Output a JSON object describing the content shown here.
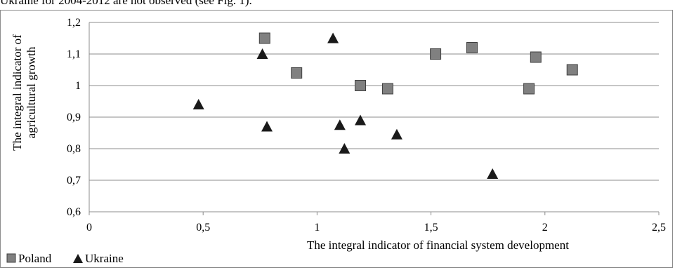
{
  "header_text": "Ukraine for 2004-2012 are not observed (see Fig. 1).",
  "chart_data": {
    "type": "scatter",
    "xlabel": "The integral indicator of financial system development",
    "ylabel_lines": [
      "The integral indicator of",
      "agricultural growth"
    ],
    "xlim": [
      0,
      2.5
    ],
    "ylim": [
      0.6,
      1.2
    ],
    "x_ticks": [
      "0",
      "0,5",
      "1",
      "1,5",
      "2",
      "2,5"
    ],
    "y_ticks": [
      "0,6",
      "0,7",
      "0,8",
      "0,9",
      "1",
      "1,1",
      "1,2"
    ],
    "grid": true,
    "legend_position": "bottom-left",
    "series": [
      {
        "name": "Poland",
        "marker": "square",
        "color": "#808080",
        "points": [
          {
            "x": 0.77,
            "y": 1.15
          },
          {
            "x": 0.91,
            "y": 1.04
          },
          {
            "x": 1.19,
            "y": 1.0
          },
          {
            "x": 1.31,
            "y": 0.99
          },
          {
            "x": 1.52,
            "y": 1.1
          },
          {
            "x": 1.68,
            "y": 1.12
          },
          {
            "x": 1.93,
            "y": 0.99
          },
          {
            "x": 1.96,
            "y": 1.09
          },
          {
            "x": 2.12,
            "y": 1.05
          }
        ]
      },
      {
        "name": "Ukraine",
        "marker": "triangle",
        "color": "#000000",
        "points": [
          {
            "x": 0.48,
            "y": 0.94
          },
          {
            "x": 0.76,
            "y": 1.1
          },
          {
            "x": 0.78,
            "y": 0.87
          },
          {
            "x": 1.07,
            "y": 1.15
          },
          {
            "x": 1.1,
            "y": 0.875
          },
          {
            "x": 1.12,
            "y": 0.8
          },
          {
            "x": 1.19,
            "y": 0.89
          },
          {
            "x": 1.35,
            "y": 0.845
          },
          {
            "x": 1.77,
            "y": 0.72
          }
        ]
      }
    ]
  }
}
